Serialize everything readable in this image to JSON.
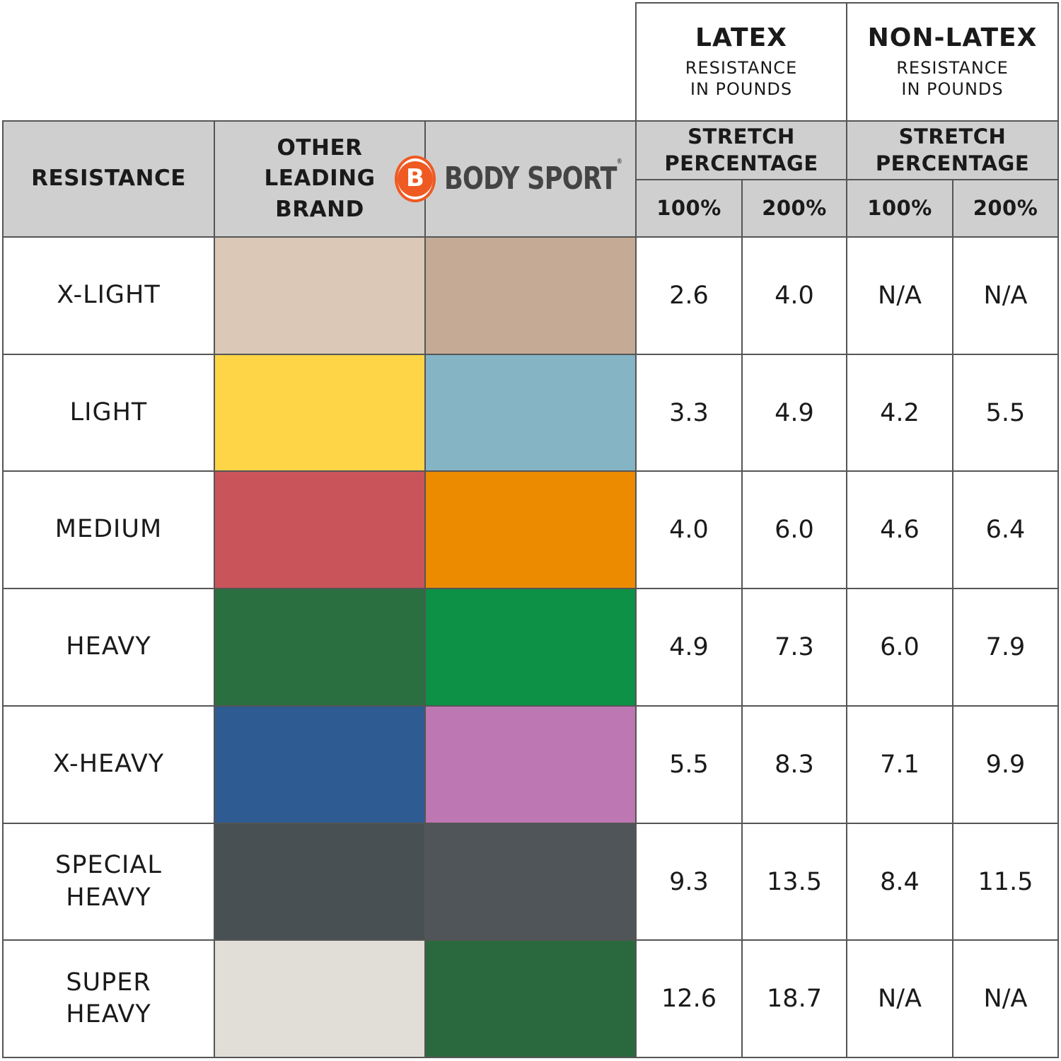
{
  "chart_data": {
    "type": "table",
    "groups": [
      {
        "title": "LATEX",
        "subtitle": [
          "RESISTANCE",
          "IN POUNDS"
        ]
      },
      {
        "title": "NON-LATEX",
        "subtitle": [
          "RESISTANCE",
          "IN POUNDS"
        ]
      }
    ],
    "headers": {
      "resistance": "RESISTANCE",
      "other_brand": [
        "OTHER",
        "LEADING",
        "BRAND"
      ],
      "bodysport_logo_letter": "B",
      "bodysport_name": "BODY SPORT",
      "bodysport_reg": "®",
      "stretch": [
        "STRETCH",
        "PERCENTAGE"
      ],
      "pct_100": "100%",
      "pct_200": "200%"
    },
    "rows": [
      {
        "resistance": [
          "X-LIGHT"
        ],
        "other_color": "#dbc8b7",
        "bodysport_color": "#c5ab95",
        "latex_100": "2.6",
        "latex_200": "4.0",
        "nonlatex_100": "N/A",
        "nonlatex_200": "N/A"
      },
      {
        "resistance": [
          "LIGHT"
        ],
        "other_color": "#fdd547",
        "bodysport_color": "#85b4c5",
        "latex_100": "3.3",
        "latex_200": "4.9",
        "nonlatex_100": "4.2",
        "nonlatex_200": "5.5"
      },
      {
        "resistance": [
          "MEDIUM"
        ],
        "other_color": "#c9555b",
        "bodysport_color": "#ec8a00",
        "latex_100": "4.0",
        "latex_200": "6.0",
        "nonlatex_100": "4.6",
        "nonlatex_200": "6.4"
      },
      {
        "resistance": [
          "HEAVY"
        ],
        "other_color": "#2a6f40",
        "bodysport_color": "#0c9146",
        "latex_100": "4.9",
        "latex_200": "7.3",
        "nonlatex_100": "6.0",
        "nonlatex_200": "7.9"
      },
      {
        "resistance": [
          "X-HEAVY"
        ],
        "other_color": "#2e5b91",
        "bodysport_color": "#bd77b2",
        "latex_100": "5.5",
        "latex_200": "8.3",
        "nonlatex_100": "7.1",
        "nonlatex_200": "9.9"
      },
      {
        "resistance": [
          "SPECIAL",
          "HEAVY"
        ],
        "other_color": "#485053",
        "bodysport_color": "#4f5559",
        "latex_100": "9.3",
        "latex_200": "13.5",
        "nonlatex_100": "8.4",
        "nonlatex_200": "11.5"
      },
      {
        "resistance": [
          "SUPER",
          "HEAVY"
        ],
        "other_color": "#e1ddd7",
        "bodysport_color": "#2a693d",
        "latex_100": "12.6",
        "latex_200": "18.7",
        "nonlatex_100": "N/A",
        "nonlatex_200": "N/A"
      }
    ]
  }
}
